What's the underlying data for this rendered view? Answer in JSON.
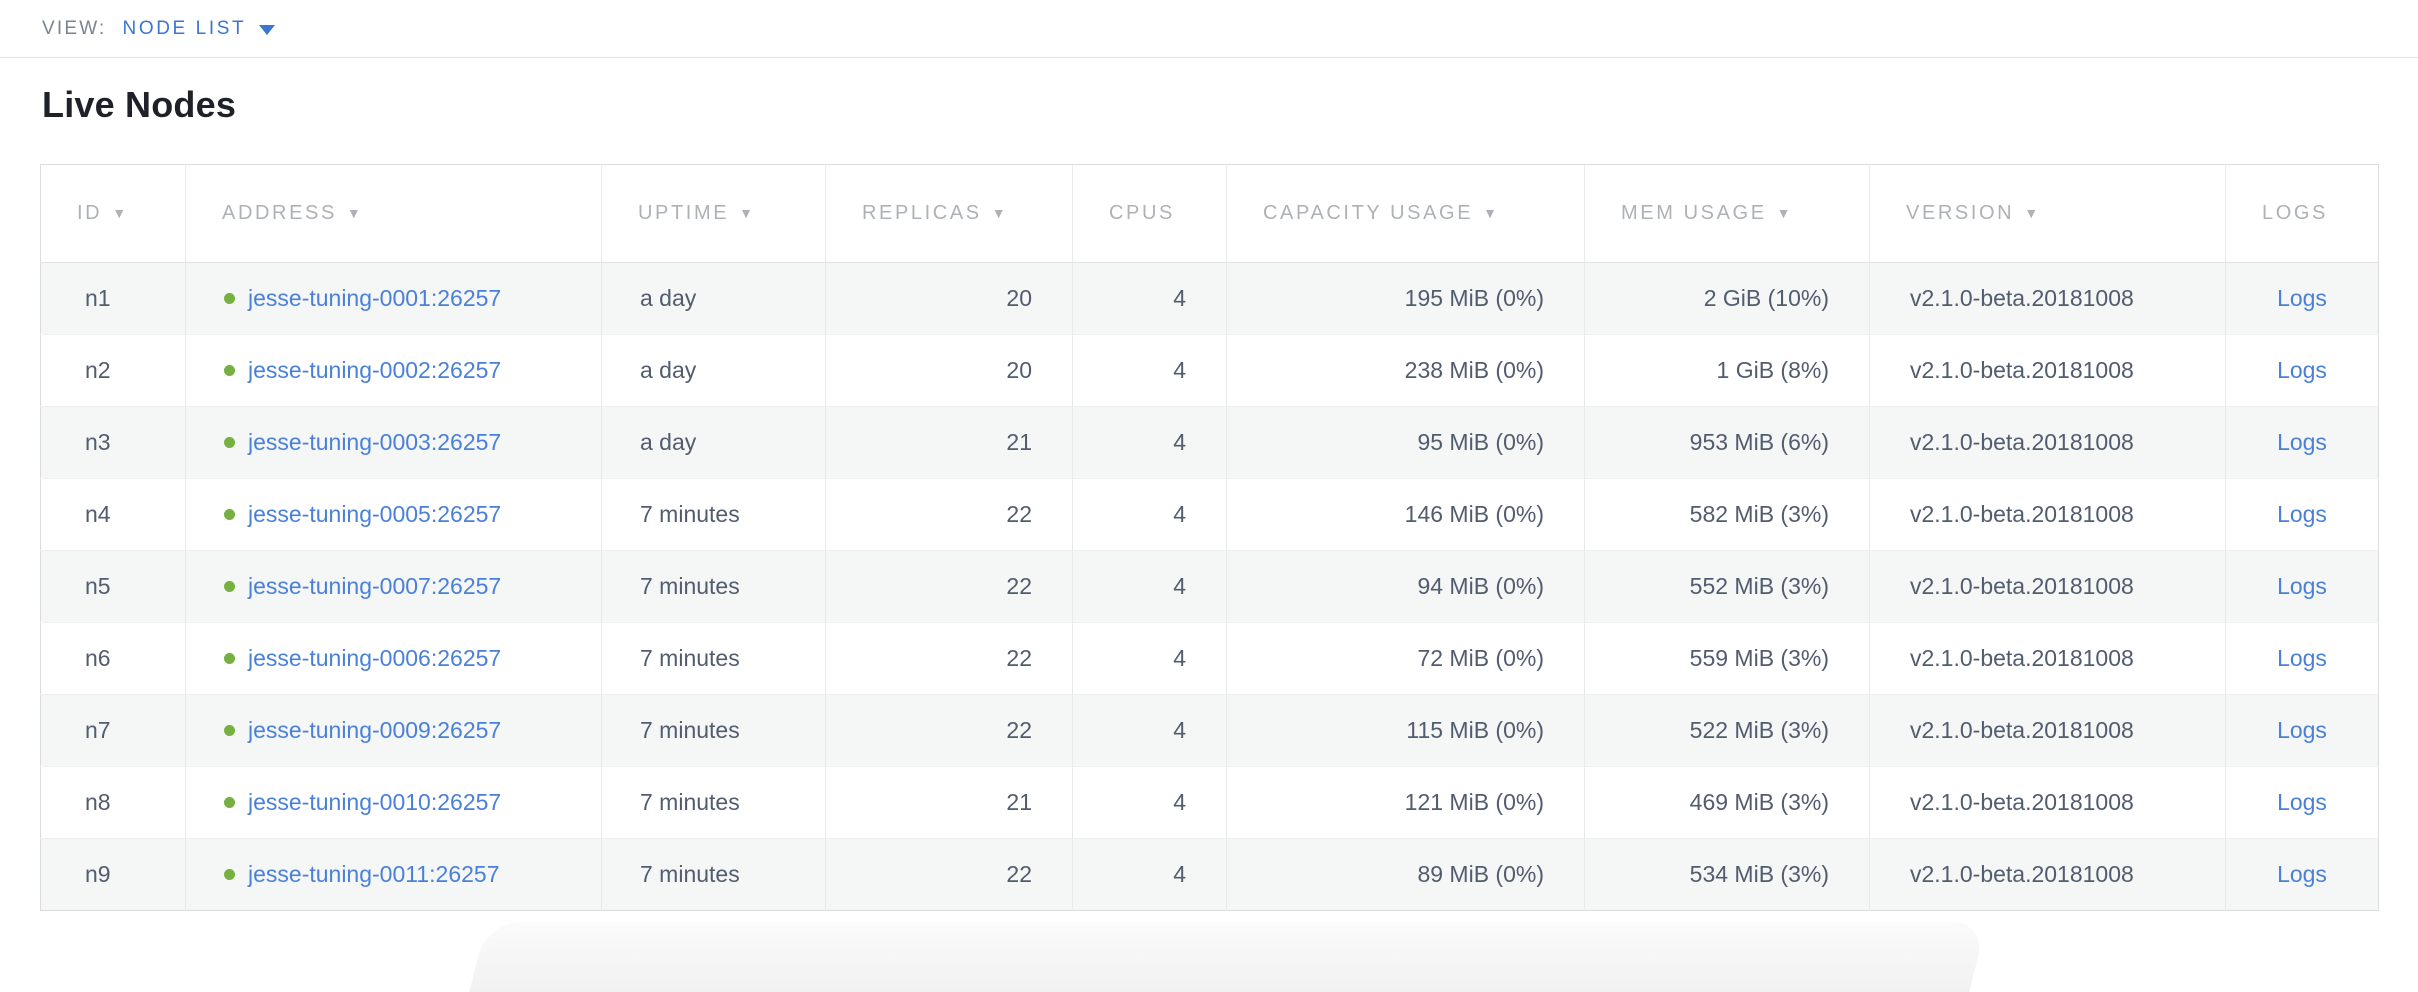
{
  "view_bar": {
    "label": "VIEW:",
    "selected": "NODE LIST"
  },
  "page": {
    "title": "Live Nodes"
  },
  "table": {
    "columns": [
      {
        "key": "id",
        "label": "ID",
        "sortable": true,
        "align": "left"
      },
      {
        "key": "address",
        "label": "ADDRESS",
        "sortable": true,
        "align": "left"
      },
      {
        "key": "uptime",
        "label": "UPTIME",
        "sortable": true,
        "align": "left"
      },
      {
        "key": "replicas",
        "label": "REPLICAS",
        "sortable": true,
        "align": "right"
      },
      {
        "key": "cpus",
        "label": "CPUS",
        "sortable": false,
        "align": "right"
      },
      {
        "key": "capacity_usage",
        "label": "CAPACITY USAGE",
        "sortable": true,
        "align": "right"
      },
      {
        "key": "mem_usage",
        "label": "MEM USAGE",
        "sortable": true,
        "align": "right"
      },
      {
        "key": "version",
        "label": "VERSION",
        "sortable": true,
        "align": "left"
      },
      {
        "key": "logs",
        "label": "LOGS",
        "sortable": false,
        "align": "center"
      }
    ],
    "rows": [
      {
        "id": "n1",
        "status": "healthy",
        "address": "jesse-tuning-0001:26257",
        "uptime": "a day",
        "replicas": "20",
        "cpus": "4",
        "capacity_usage": "195 MiB (0%)",
        "mem_usage": "2 GiB (10%)",
        "version": "v2.1.0-beta.20181008",
        "logs": "Logs"
      },
      {
        "id": "n2",
        "status": "healthy",
        "address": "jesse-tuning-0002:26257",
        "uptime": "a day",
        "replicas": "20",
        "cpus": "4",
        "capacity_usage": "238 MiB (0%)",
        "mem_usage": "1 GiB (8%)",
        "version": "v2.1.0-beta.20181008",
        "logs": "Logs"
      },
      {
        "id": "n3",
        "status": "healthy",
        "address": "jesse-tuning-0003:26257",
        "uptime": "a day",
        "replicas": "21",
        "cpus": "4",
        "capacity_usage": "95 MiB (0%)",
        "mem_usage": "953 MiB (6%)",
        "version": "v2.1.0-beta.20181008",
        "logs": "Logs"
      },
      {
        "id": "n4",
        "status": "healthy",
        "address": "jesse-tuning-0005:26257",
        "uptime": "7 minutes",
        "replicas": "22",
        "cpus": "4",
        "capacity_usage": "146 MiB (0%)",
        "mem_usage": "582 MiB (3%)",
        "version": "v2.1.0-beta.20181008",
        "logs": "Logs"
      },
      {
        "id": "n5",
        "status": "healthy",
        "address": "jesse-tuning-0007:26257",
        "uptime": "7 minutes",
        "replicas": "22",
        "cpus": "4",
        "capacity_usage": "94 MiB (0%)",
        "mem_usage": "552 MiB (3%)",
        "version": "v2.1.0-beta.20181008",
        "logs": "Logs"
      },
      {
        "id": "n6",
        "status": "healthy",
        "address": "jesse-tuning-0006:26257",
        "uptime": "7 minutes",
        "replicas": "22",
        "cpus": "4",
        "capacity_usage": "72 MiB (0%)",
        "mem_usage": "559 MiB (3%)",
        "version": "v2.1.0-beta.20181008",
        "logs": "Logs"
      },
      {
        "id": "n7",
        "status": "healthy",
        "address": "jesse-tuning-0009:26257",
        "uptime": "7 minutes",
        "replicas": "22",
        "cpus": "4",
        "capacity_usage": "115 MiB (0%)",
        "mem_usage": "522 MiB (3%)",
        "version": "v2.1.0-beta.20181008",
        "logs": "Logs"
      },
      {
        "id": "n8",
        "status": "healthy",
        "address": "jesse-tuning-0010:26257",
        "uptime": "7 minutes",
        "replicas": "21",
        "cpus": "4",
        "capacity_usage": "121 MiB (0%)",
        "mem_usage": "469 MiB (3%)",
        "version": "v2.1.0-beta.20181008",
        "logs": "Logs"
      },
      {
        "id": "n9",
        "status": "healthy",
        "address": "jesse-tuning-0011:26257",
        "uptime": "7 minutes",
        "replicas": "22",
        "cpus": "4",
        "capacity_usage": "89 MiB (0%)",
        "mem_usage": "534 MiB (3%)",
        "version": "v2.1.0-beta.20181008",
        "logs": "Logs"
      }
    ]
  },
  "colors": {
    "accent_blue": "#3b76d0",
    "link_blue": "#4a80d9",
    "healthy_green": "#76b042",
    "header_gray": "#aeb1b6",
    "cell_text": "#525c6f",
    "row_stripe": "#f5f6f6"
  }
}
